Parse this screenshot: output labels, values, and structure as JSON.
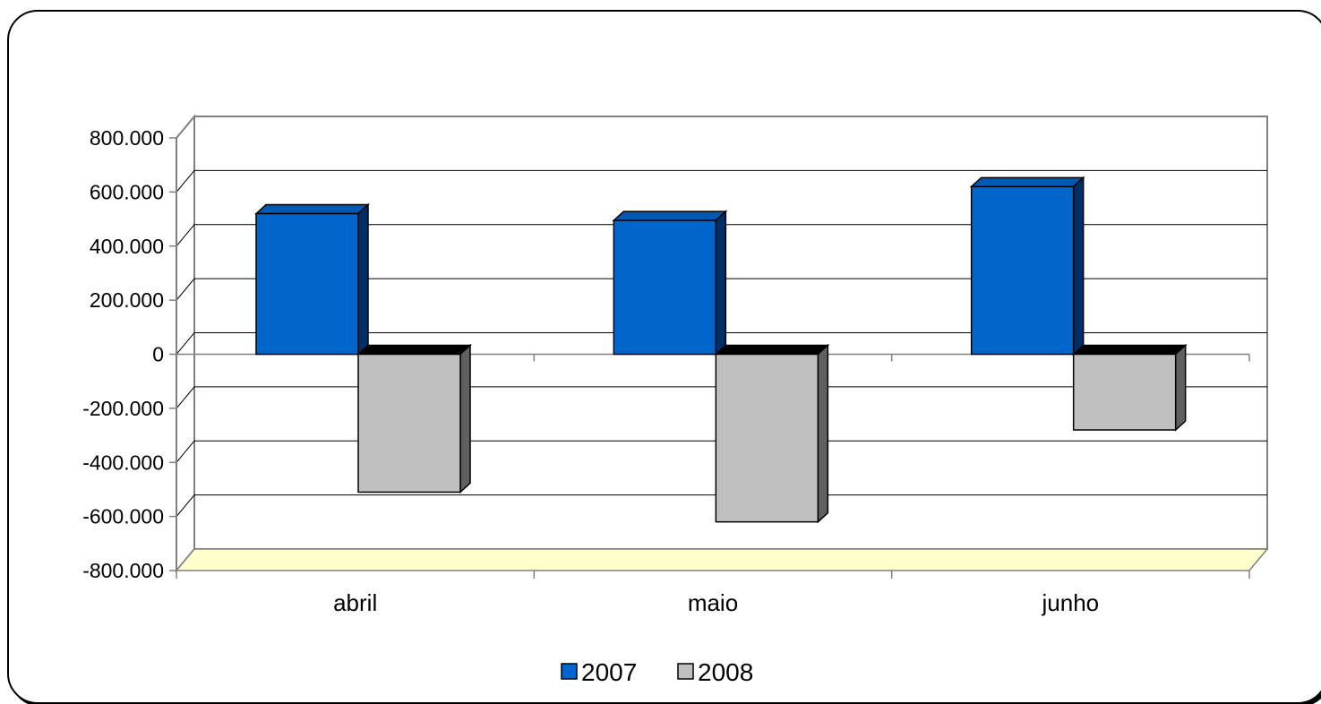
{
  "chart_data": {
    "type": "bar",
    "categories": [
      "abril",
      "maio",
      "junho"
    ],
    "series": [
      {
        "name": "2007",
        "values": [
          520000,
          495000,
          620000
        ]
      },
      {
        "name": "2008",
        "values": [
          -510000,
          -620000,
          -280000
        ]
      }
    ],
    "ylim": [
      -800000,
      800000
    ],
    "yticks": [
      800000,
      600000,
      400000,
      200000,
      0,
      -200000,
      -400000,
      -600000,
      -800000
    ],
    "ytick_labels": [
      "800.000",
      "600.000",
      "400.000",
      "200.000",
      "0",
      "-200.000",
      "-400.000",
      "-600.000",
      "-800.000"
    ],
    "grid": true,
    "legend": "bottom",
    "colors": {
      "s2007_front": "#0066CC",
      "s2007_top": "#0059B3",
      "s2007_side": "#002E66",
      "s2008_front": "#C0C0C0",
      "s2008_top": "#000000",
      "s2008_side": "#606060",
      "floor": "#FFFFCC",
      "walls": "#FFFFFF",
      "grid": "#000000",
      "axis": "#808080"
    }
  }
}
